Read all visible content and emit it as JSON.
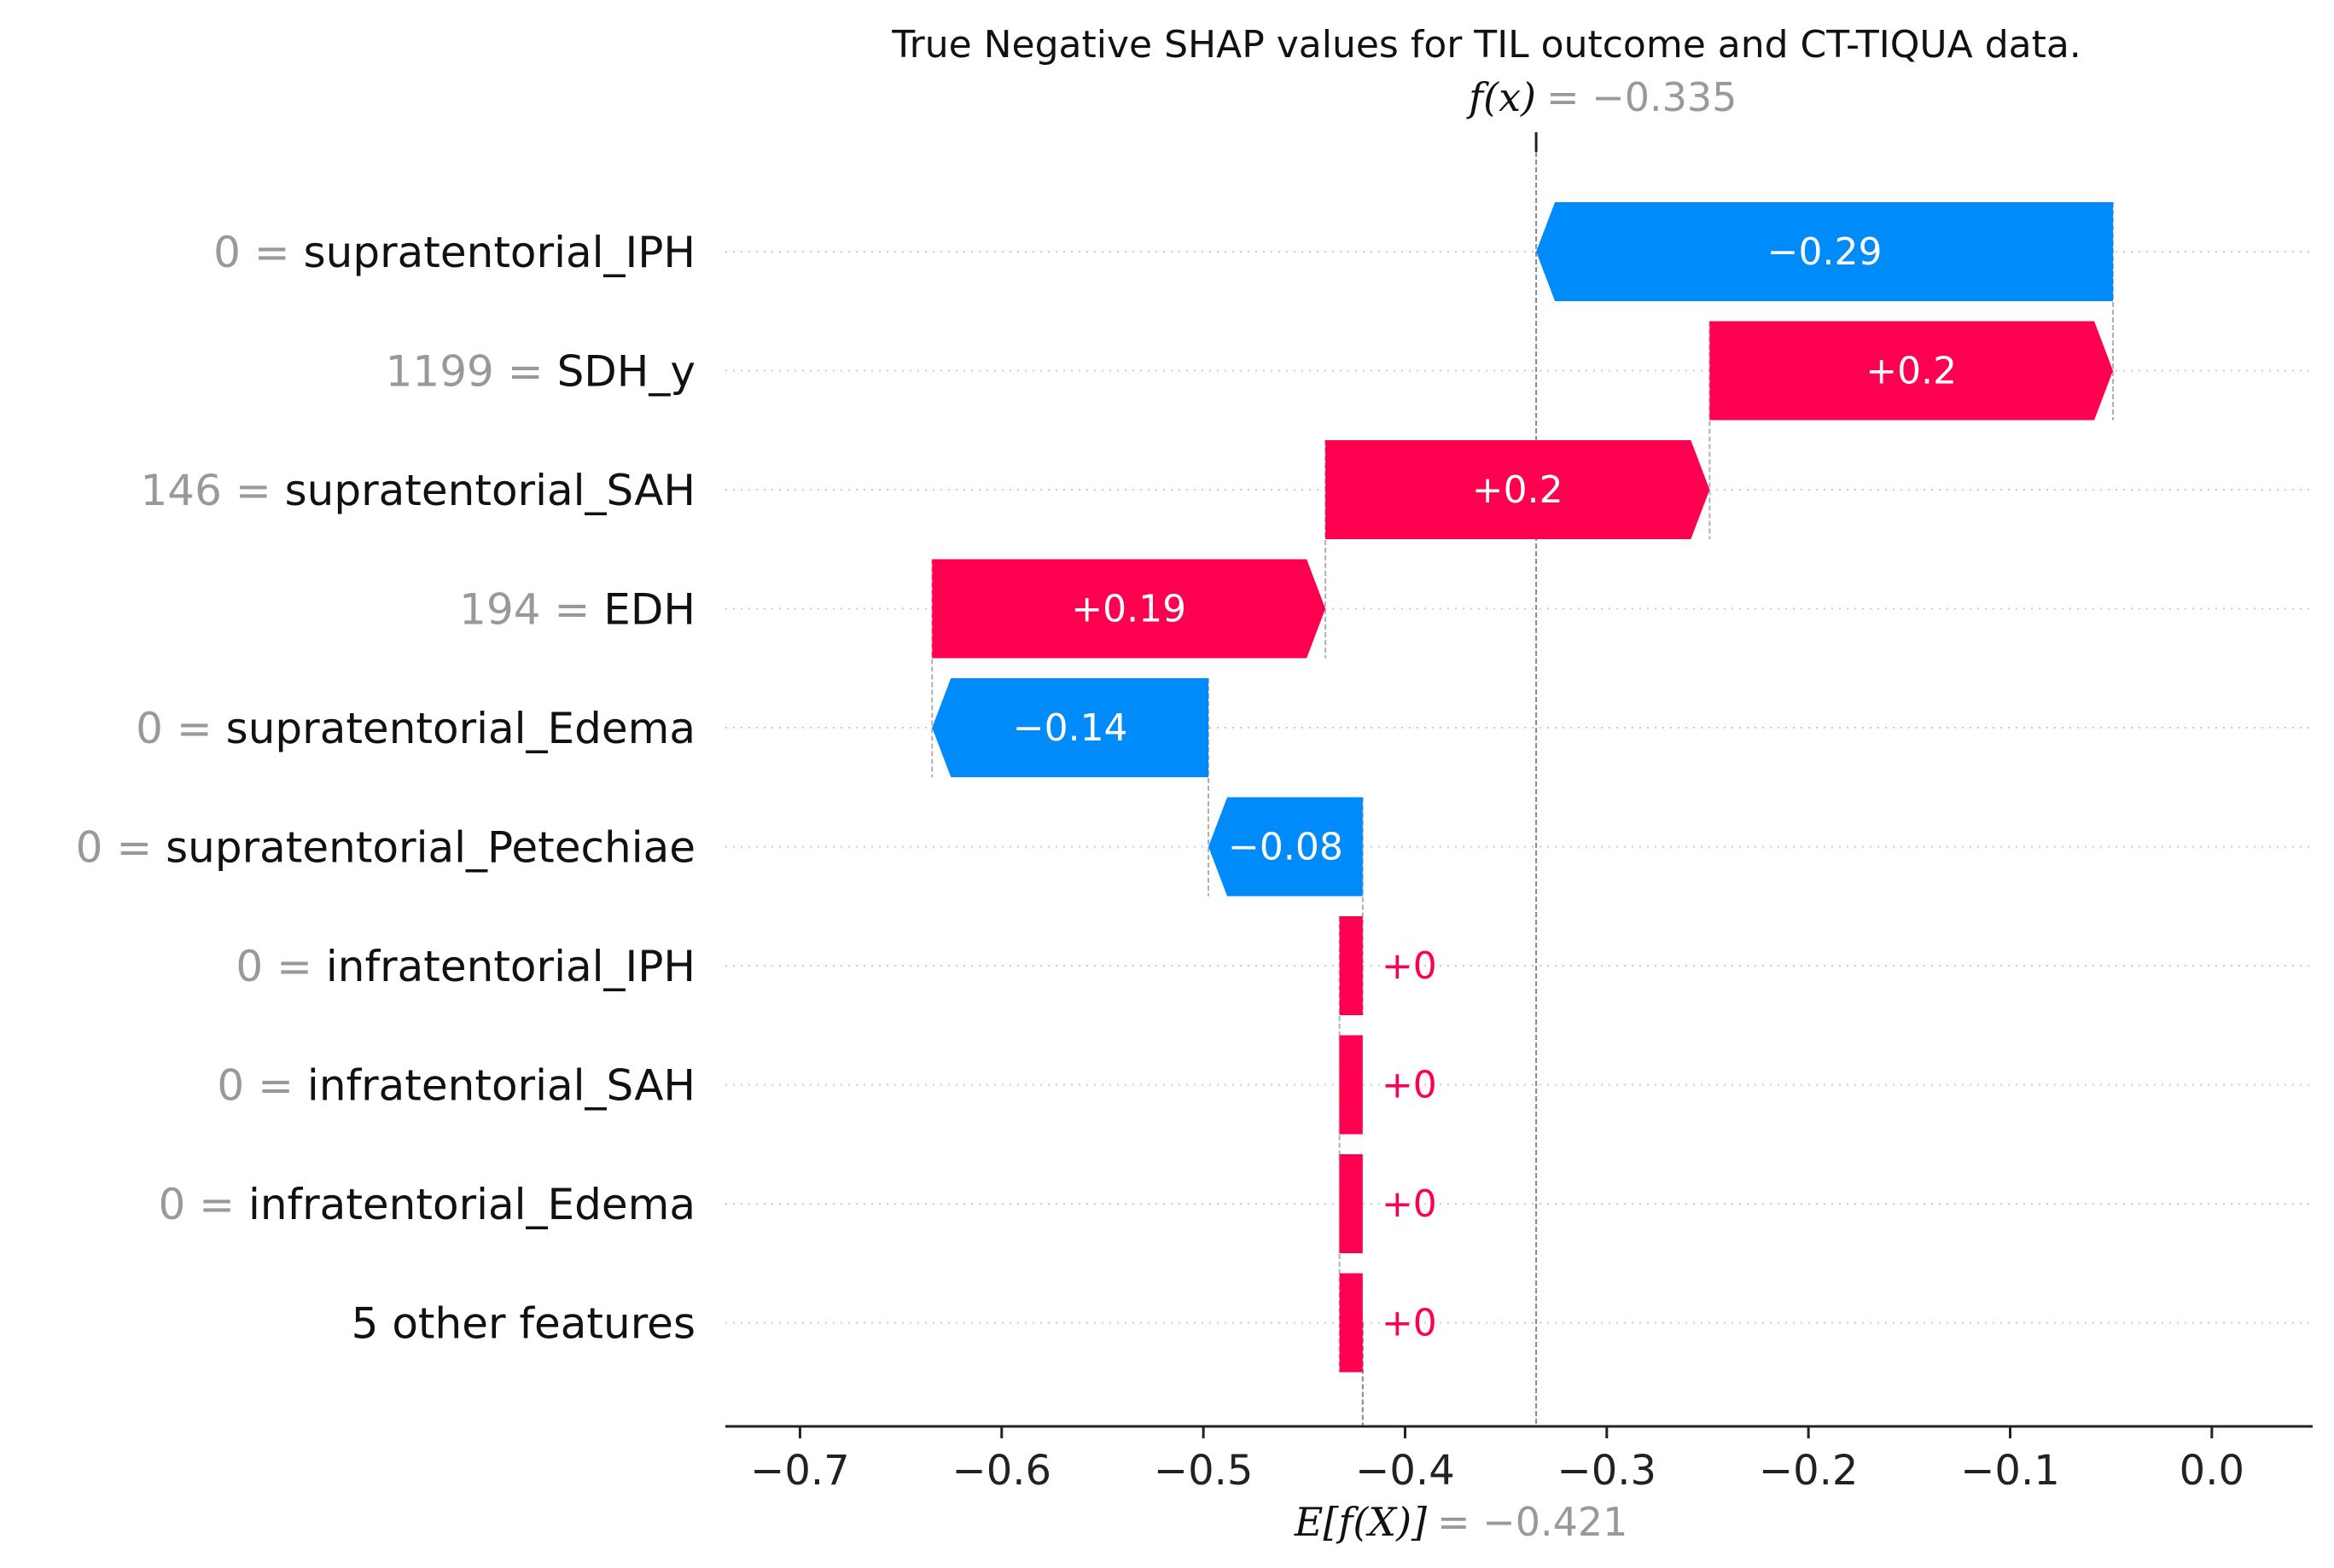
{
  "chart_data": {
    "type": "waterfall",
    "title": "True Negative SHAP values for TIL outcome and CT-TIQUA data.",
    "fx": {
      "label": "f(x)",
      "value_text": "= −0.335",
      "value": -0.335
    },
    "efx": {
      "label": "E[f(X)]",
      "value_text": "= −0.421",
      "value": -0.421
    },
    "xlim": [
      -0.737,
      0.05
    ],
    "xticks": [
      {
        "value": -0.7,
        "label": "−0.7"
      },
      {
        "value": -0.6,
        "label": "−0.6"
      },
      {
        "value": -0.5,
        "label": "−0.5"
      },
      {
        "value": -0.4,
        "label": "−0.4"
      },
      {
        "value": -0.3,
        "label": "−0.3"
      },
      {
        "value": -0.2,
        "label": "−0.2"
      },
      {
        "value": -0.1,
        "label": "−0.1"
      },
      {
        "value": 0.0,
        "label": "0.0"
      }
    ],
    "features": [
      {
        "value": "0",
        "name": "supratentorial_IPH",
        "start": -0.049,
        "end": -0.335,
        "label": "−0.29"
      },
      {
        "value": "1199",
        "name": "SDH_y",
        "start": -0.249,
        "end": -0.049,
        "label": "+0.2"
      },
      {
        "value": "146",
        "name": "supratentorial_SAH",
        "start": -0.4395,
        "end": -0.249,
        "label": "+0.2"
      },
      {
        "value": "194",
        "name": "EDH",
        "start": -0.6345,
        "end": -0.4395,
        "label": "+0.19"
      },
      {
        "value": "0",
        "name": "supratentorial_Edema",
        "start": -0.4975,
        "end": -0.6345,
        "label": "−0.14"
      },
      {
        "value": "0",
        "name": "supratentorial_Petechiae",
        "start": -0.421,
        "end": -0.4975,
        "label": "−0.08"
      },
      {
        "value": "0",
        "name": "infratentorial_IPH",
        "start": -0.4325,
        "end": -0.421,
        "label": "+0"
      },
      {
        "value": "0",
        "name": "infratentorial_SAH",
        "start": -0.4325,
        "end": -0.421,
        "label": "+0"
      },
      {
        "value": "0",
        "name": "infratentorial_Edema",
        "start": -0.4325,
        "end": -0.421,
        "label": "+0"
      },
      {
        "value": "",
        "name": "5 other features",
        "start": -0.4325,
        "end": -0.421,
        "label": "+0"
      }
    ],
    "colors": {
      "positive": "#ff0051",
      "negative": "#008bfb",
      "value_text": "#999999"
    }
  }
}
